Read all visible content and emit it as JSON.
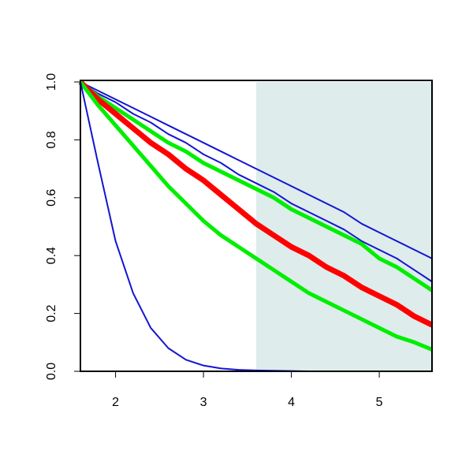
{
  "chart_data": {
    "type": "line",
    "x": [
      1.6,
      1.8,
      2.0,
      2.2,
      2.4,
      2.6,
      2.8,
      3.0,
      3.2,
      3.4,
      3.6,
      3.8,
      4.0,
      4.2,
      4.4,
      4.6,
      4.8,
      5.0,
      5.2,
      5.4,
      5.6
    ],
    "series": [
      {
        "color": "#1414d2",
        "width": 2,
        "values": [
          1,
          0.97,
          0.94,
          0.91,
          0.88,
          0.85,
          0.82,
          0.79,
          0.76,
          0.73,
          0.7,
          0.67,
          0.64,
          0.61,
          0.58,
          0.55,
          0.51,
          0.48,
          0.45,
          0.42,
          0.39
        ]
      },
      {
        "color": "#1414d2",
        "width": 2,
        "values": [
          1,
          0.96,
          0.93,
          0.89,
          0.86,
          0.82,
          0.79,
          0.75,
          0.72,
          0.68,
          0.65,
          0.62,
          0.58,
          0.55,
          0.52,
          0.49,
          0.45,
          0.42,
          0.39,
          0.35,
          0.31
        ]
      },
      {
        "color": "#00ee00",
        "width": 5,
        "values": [
          1,
          0.95,
          0.91,
          0.87,
          0.83,
          0.79,
          0.76,
          0.72,
          0.69,
          0.66,
          0.63,
          0.6,
          0.56,
          0.53,
          0.5,
          0.47,
          0.44,
          0.39,
          0.36,
          0.32,
          0.28
        ]
      },
      {
        "color": "#ff0000",
        "width": 7,
        "values": [
          1,
          0.94,
          0.89,
          0.84,
          0.79,
          0.75,
          0.7,
          0.66,
          0.61,
          0.56,
          0.51,
          0.47,
          0.43,
          0.4,
          0.36,
          0.33,
          0.29,
          0.26,
          0.23,
          0.19,
          0.16
        ]
      },
      {
        "color": "#00ee00",
        "width": 5,
        "values": [
          1,
          0.92,
          0.85,
          0.78,
          0.71,
          0.64,
          0.58,
          0.52,
          0.47,
          0.43,
          0.39,
          0.35,
          0.31,
          0.27,
          0.24,
          0.21,
          0.18,
          0.15,
          0.12,
          0.1,
          0.075
        ]
      },
      {
        "color": "#1414d2",
        "width": 2,
        "values": [
          1,
          0.72,
          0.45,
          0.27,
          0.15,
          0.08,
          0.04,
          0.02,
          0.01,
          0.005,
          0.003,
          0.002,
          0.001,
          0,
          0,
          0,
          0,
          0,
          0,
          0,
          0
        ]
      }
    ],
    "shaded_region": {
      "x": [
        3.6,
        5.6
      ],
      "color": "#deecec"
    },
    "xlim": [
      1.6,
      5.6
    ],
    "ylim": [
      0,
      1
    ],
    "xticks": [
      2,
      3,
      4,
      5
    ],
    "yticks": [
      {
        "value": 0,
        "label": "0.0"
      },
      {
        "value": 0.2,
        "label": "0.2"
      },
      {
        "value": 0.4,
        "label": "0.4"
      },
      {
        "value": 0.6,
        "label": "0.6"
      },
      {
        "value": 0.8,
        "label": "0.8"
      },
      {
        "value": 1,
        "label": "1.0"
      }
    ]
  }
}
